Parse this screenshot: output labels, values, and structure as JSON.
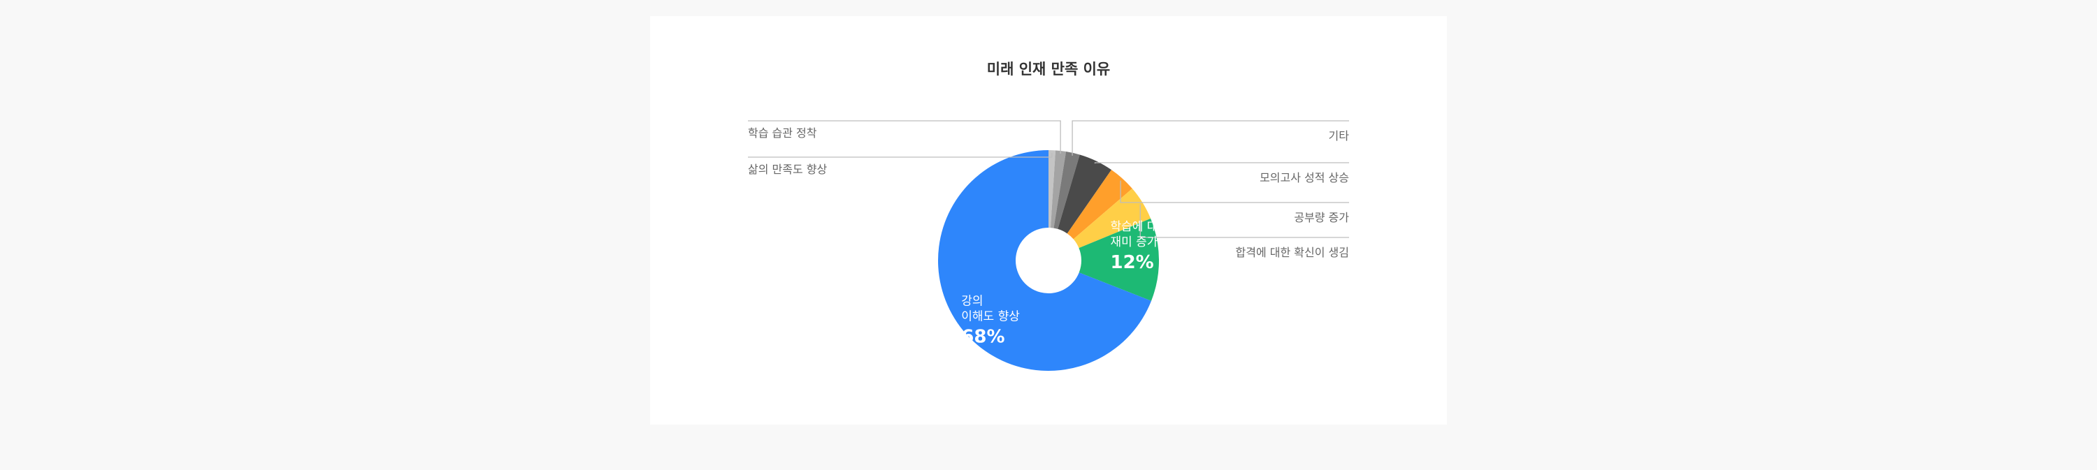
{
  "chart_data": {
    "type": "pie",
    "title": "미래 인재 만족 이유",
    "categories": [
      "강의 이해도 향상",
      "학습에 대한 재미 증가",
      "합격에 대한 확신이 생김",
      "공부량 증가",
      "모의고사 성적 상승",
      "기타",
      "학습 습관 정착",
      "삶의 만족도 향상"
    ],
    "values": [
      68,
      12,
      5,
      4,
      5,
      2,
      1.5,
      1
    ],
    "colors": [
      "#2e86fb",
      "#1db974",
      "#ffcf47",
      "#ff9f2b",
      "#4a4a4a",
      "#7a7a7a",
      "#a4a4a4",
      "#c4c4c4"
    ],
    "inner_labels": [
      {
        "lines": [
          "강의",
          "이해도 향상"
        ],
        "pct": "68%"
      },
      {
        "lines": [
          "학습에 대한",
          "재미 증가"
        ],
        "pct": "12%"
      }
    ],
    "legend": "callouts"
  }
}
